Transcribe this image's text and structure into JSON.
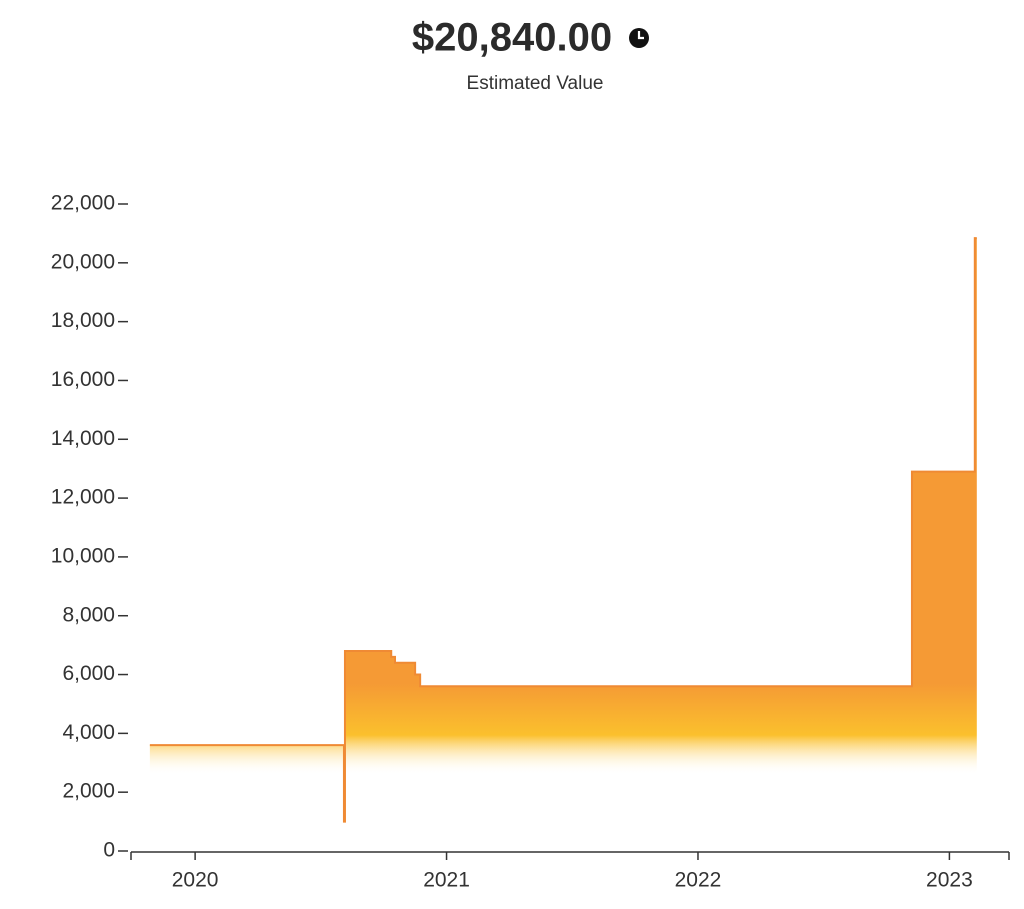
{
  "chart_data": {
    "type": "step-area",
    "title": "$20,840.00",
    "subtitle": "Estimated Value",
    "color": "#ef8a34",
    "x": [
      2019.82,
      2020.59,
      2020.592,
      2020.596,
      2020.78,
      2020.795,
      2020.875,
      2020.895,
      2022.851,
      2023.101
    ],
    "values": [
      3600,
      3600,
      1000,
      6800,
      6600,
      6400,
      6000,
      5600,
      12900,
      20840
    ],
    "xlim": [
      2019.745,
      2023.237
    ],
    "xticks": [
      2020,
      2021,
      2022,
      2023
    ],
    "ylim": [
      0,
      22000
    ],
    "yticks": [
      0,
      {
        "value": 2000,
        "label": "2,000"
      },
      {
        "value": 4000,
        "label": "4,000"
      },
      {
        "value": 6000,
        "label": "6,000"
      },
      {
        "value": 8000,
        "label": "8,000"
      },
      {
        "value": 10000,
        "label": "10,000"
      },
      {
        "value": 12000,
        "label": "12,000"
      },
      {
        "value": 14000,
        "label": "14,000"
      },
      {
        "value": 16000,
        "label": "16,000"
      },
      {
        "value": 18000,
        "label": "18,000"
      },
      {
        "value": 20000,
        "label": "20,000"
      },
      {
        "value": 22000,
        "label": "22,000"
      }
    ]
  }
}
